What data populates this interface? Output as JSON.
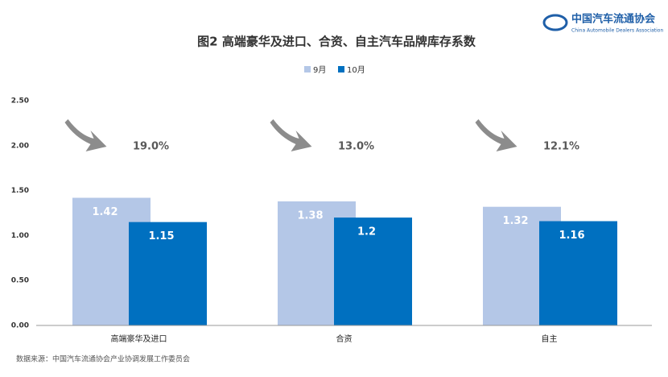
{
  "chart_data": {
    "type": "bar",
    "title": "图2  高端豪华及进口、合资、自主汽车品牌库存系数",
    "categories": [
      "高端豪华及进口",
      "合资",
      "自主"
    ],
    "series": [
      {
        "name": "9月",
        "color": "#b4c7e7",
        "values": [
          1.42,
          1.38,
          1.32
        ]
      },
      {
        "name": "10月",
        "color": "#0070c0",
        "values": [
          1.15,
          1.2,
          1.16
        ]
      }
    ],
    "annotations": [
      "19.0%",
      "13.0%",
      "12.1%"
    ],
    "ylim": [
      0,
      2.5
    ],
    "yticks": [
      {
        "value": 0,
        "label": "0.00"
      },
      {
        "value": 0.5,
        "label": "0.50"
      },
      {
        "value": 1,
        "label": "1.00"
      },
      {
        "value": 1.5,
        "label": "1.50"
      },
      {
        "value": 2,
        "label": "2.00"
      },
      {
        "value": 2.5,
        "label": "2.50"
      }
    ],
    "grid": false,
    "source": "数据来源：中国汽车流通协会产业协调发展工作委员会",
    "logo": {
      "name": "中国汽车流通协会",
      "subtitle": "China Automobile Dealers Association"
    }
  }
}
